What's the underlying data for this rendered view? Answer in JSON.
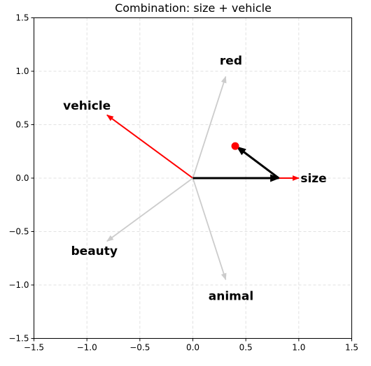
{
  "chart_data": {
    "type": "vector",
    "title": "Combination: size + vehicle",
    "xlim": [
      -1.5,
      1.5
    ],
    "ylim": [
      -1.5,
      1.5
    ],
    "xticks": [
      "−1.5",
      "−1.0",
      "−0.5",
      "0.0",
      "0.5",
      "1.0",
      "1.5"
    ],
    "yticks": [
      "−1.5",
      "−1.0",
      "−0.5",
      "0.0",
      "0.5",
      "1.0",
      "1.5"
    ],
    "xtick_values": [
      -1.5,
      -1.0,
      -0.5,
      0.0,
      0.5,
      1.0,
      1.5
    ],
    "ytick_values": [
      -1.5,
      -1.0,
      -0.5,
      0.0,
      0.5,
      1.0,
      1.5
    ],
    "grid": true,
    "base_vectors": [
      {
        "name": "red",
        "x": 0.31,
        "y": 0.95,
        "color": "#cccccc",
        "label_x": 0.36,
        "label_y": 1.1
      },
      {
        "name": "vehicle",
        "x": -0.81,
        "y": 0.59,
        "color": "#ff0000",
        "label_x": -1.0,
        "label_y": 0.68
      },
      {
        "name": "size",
        "x": 1.0,
        "y": 0.0,
        "color": "#ff0000",
        "label_x": 1.14,
        "label_y": 0.0
      },
      {
        "name": "beauty",
        "x": -0.81,
        "y": -0.59,
        "color": "#cccccc",
        "label_x": -0.93,
        "label_y": -0.68
      },
      {
        "name": "animal",
        "x": 0.31,
        "y": -0.95,
        "color": "#cccccc",
        "label_x": 0.36,
        "label_y": -1.1
      }
    ],
    "combination": {
      "steps": [
        {
          "from": [
            0.0,
            0.0
          ],
          "to": [
            0.81,
            0.0
          ]
        },
        {
          "from": [
            0.81,
            0.0
          ],
          "to": [
            0.42,
            0.29
          ]
        }
      ],
      "color": "#000000",
      "result_point": {
        "x": 0.4,
        "y": 0.3,
        "color": "#ff0000"
      }
    }
  }
}
